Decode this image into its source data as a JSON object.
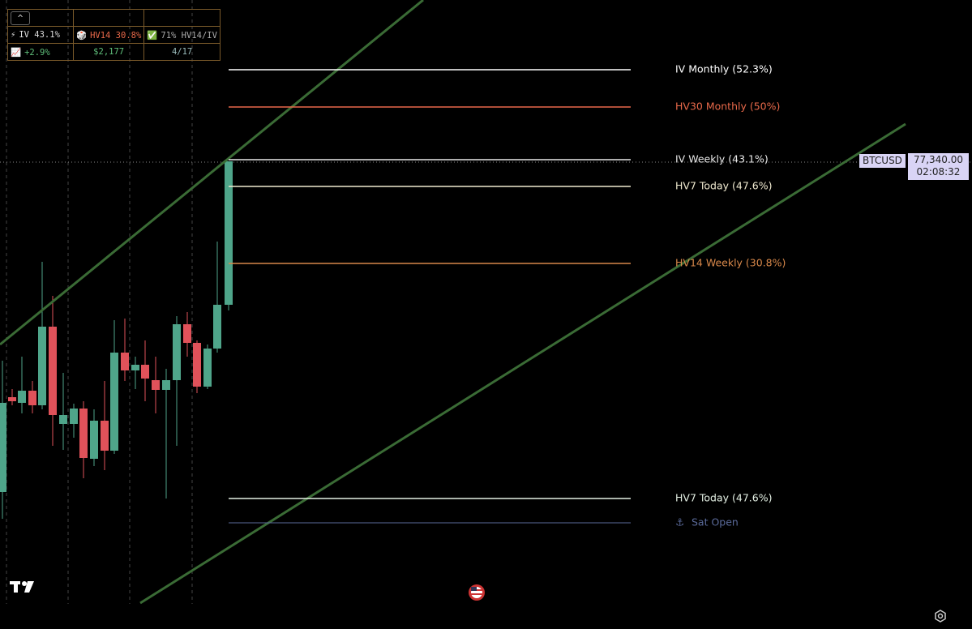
{
  "table": {
    "button": "^",
    "rows": [
      [
        {
          "icon": "⚡",
          "text": "IV 43.1%"
        },
        {
          "icon": "🎲",
          "text": "HV14 30.8%"
        },
        {
          "icon": "✅",
          "text": "71% HV14/IV"
        }
      ],
      [
        {
          "icon": "📈",
          "text": "+2.9%"
        },
        {
          "icon": "",
          "text": "$2,177"
        },
        {
          "icon": "",
          "text": "4/17"
        }
      ]
    ]
  },
  "levels": [
    {
      "label": "IV Monthly (52.3%)",
      "color": "#ffffff"
    },
    {
      "label": "HV30 Monthly (50%)",
      "color": "#e8694a"
    },
    {
      "label": "IV Weekly (43.1%)",
      "color": "#e8e8e8"
    },
    {
      "label": "HV7 Today (47.6%)",
      "color": "#f0ead0"
    },
    {
      "label": "HV14 Weekly (30.8%)",
      "color": "#d8884a"
    },
    {
      "label": "HV7 Today (47.6%)",
      "color": "#e4f0e4"
    },
    {
      "label": "Sat Open",
      "icon": "⚓",
      "color": "#5a6a9a"
    }
  ],
  "price_tag": {
    "symbol": "BTCUSD",
    "price": "77,340.00",
    "countdown": "02:08:32"
  }
}
